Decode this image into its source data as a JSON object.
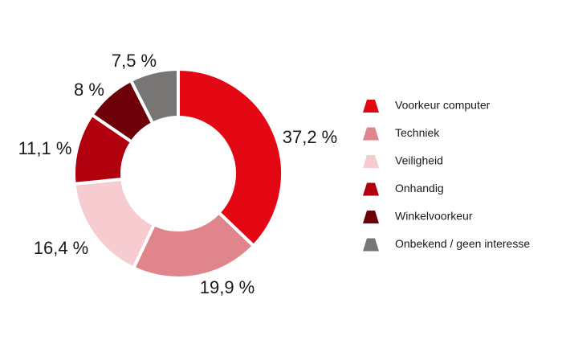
{
  "chart_data": {
    "type": "pie",
    "donut": true,
    "title": "",
    "legend_position": "right",
    "slices": [
      {
        "name": "Voorkeur computer",
        "value": 37.2,
        "label": "37,2 %",
        "color": "#e30613"
      },
      {
        "name": "Techniek",
        "value": 19.9,
        "label": "19,9 %",
        "color": "#df858b"
      },
      {
        "name": "Veiligheid",
        "value": 16.4,
        "label": "16,4 %",
        "color": "#f6ccd0"
      },
      {
        "name": "Onhandig",
        "value": 11.1,
        "label": "11,1 %",
        "color": "#b0000e"
      },
      {
        "name": "Winkelvoorkeur",
        "value": 8,
        "label": "8 %",
        "color": "#6e0009"
      },
      {
        "name": "Onbekend / geen interesse",
        "value": 7.5,
        "label": "7,5 %",
        "color": "#787575"
      }
    ]
  }
}
